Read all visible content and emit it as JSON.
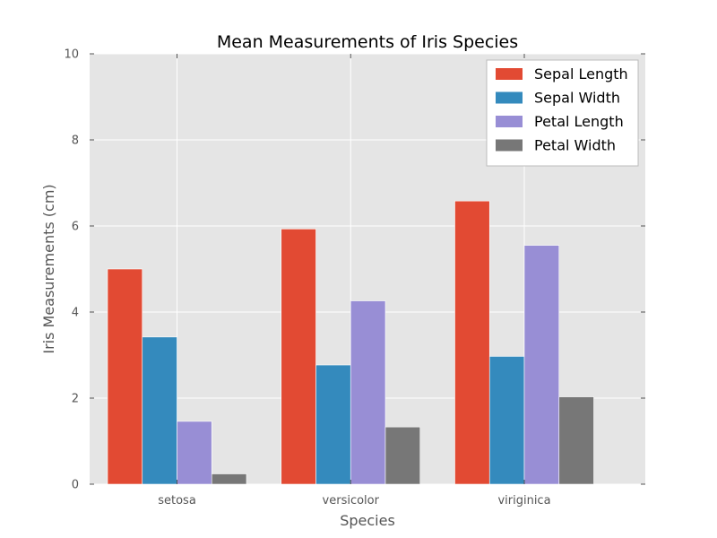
{
  "colors": {
    "plot_background": "#E5E5E5",
    "grid": "#FFFFFF",
    "tick": "#555555",
    "legend_border": "#BCBCBC"
  },
  "chart_data": {
    "type": "bar",
    "title": "Mean Measurements of Iris Species",
    "xlabel": "Species",
    "ylabel": "Iris Measurements (cm)",
    "categories": [
      "setosa",
      "versicolor",
      "viriginica"
    ],
    "ylim": [
      0,
      10
    ],
    "yticks": [
      0,
      2,
      4,
      6,
      8,
      10
    ],
    "grid": true,
    "legend_position": "top-right",
    "series": [
      {
        "name": "Sepal Length",
        "color": "#E24A33",
        "values": [
          5.0,
          5.93,
          6.58
        ]
      },
      {
        "name": "Sepal Width",
        "color": "#348ABD",
        "values": [
          3.42,
          2.77,
          2.97
        ]
      },
      {
        "name": "Petal Length",
        "color": "#988ED5",
        "values": [
          1.46,
          4.26,
          5.55
        ]
      },
      {
        "name": "Petal Width",
        "color": "#777777",
        "values": [
          0.24,
          1.33,
          2.03
        ]
      }
    ]
  }
}
